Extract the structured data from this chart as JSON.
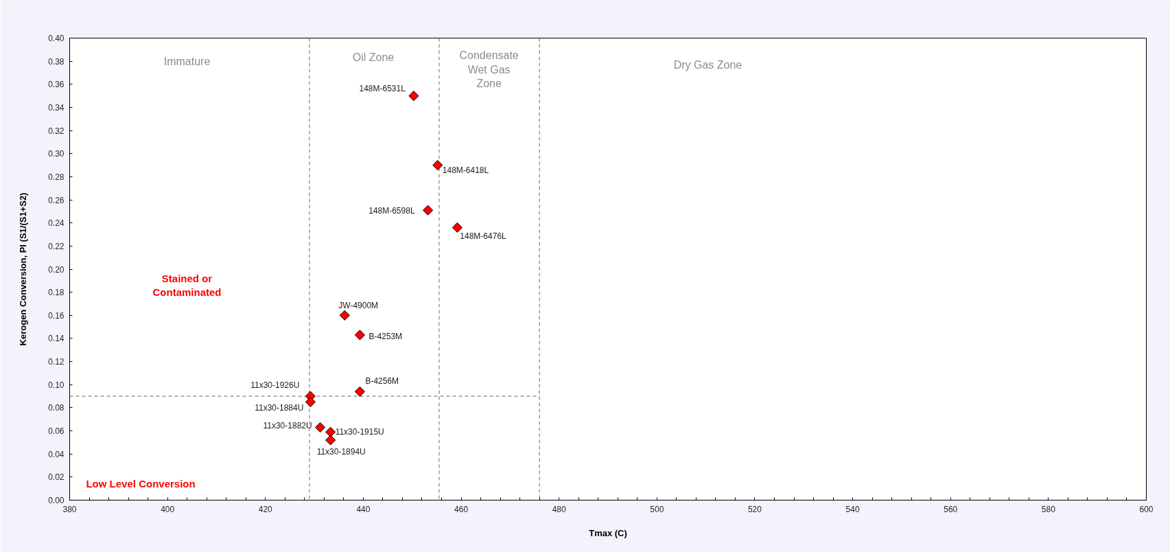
{
  "chart_data": {
    "type": "scatter",
    "xlabel": "Tmax (C)",
    "ylabel": "Kerogen Conversion, PI (S1/(S1+S2)",
    "xlim": [
      380,
      600
    ],
    "ylim": [
      0,
      0.4
    ],
    "xticks": [
      380,
      {
        "value": 384,
        "label": null
      },
      {
        "value": 388,
        "label": null
      },
      {
        "value": 392,
        "label": null
      },
      {
        "value": 396,
        "label": null
      },
      400,
      {
        "value": 404,
        "label": null
      },
      {
        "value": 408,
        "label": null
      },
      {
        "value": 412,
        "label": null
      },
      {
        "value": 416,
        "label": null
      },
      420,
      {
        "value": 424,
        "label": null
      },
      {
        "value": 428,
        "label": null
      },
      {
        "value": 432,
        "label": null
      },
      {
        "value": 436,
        "label": null
      },
      440,
      {
        "value": 444,
        "label": null
      },
      {
        "value": 448,
        "label": null
      },
      {
        "value": 452,
        "label": null
      },
      {
        "value": 456,
        "label": null
      },
      460,
      {
        "value": 464,
        "label": null
      },
      {
        "value": 468,
        "label": null
      },
      {
        "value": 472,
        "label": null
      },
      {
        "value": 476,
        "label": null
      },
      480,
      {
        "value": 484,
        "label": null
      },
      {
        "value": 488,
        "label": null
      },
      {
        "value": 492,
        "label": null
      },
      {
        "value": 496,
        "label": null
      },
      500,
      {
        "value": 504,
        "label": null
      },
      {
        "value": 508,
        "label": null
      },
      {
        "value": 512,
        "label": null
      },
      {
        "value": 516,
        "label": null
      },
      520,
      {
        "value": 524,
        "label": null
      },
      {
        "value": 528,
        "label": null
      },
      {
        "value": 532,
        "label": null
      },
      {
        "value": 536,
        "label": null
      },
      540,
      {
        "value": 544,
        "label": null
      },
      {
        "value": 548,
        "label": null
      },
      {
        "value": 552,
        "label": null
      },
      {
        "value": 556,
        "label": null
      },
      560,
      {
        "value": 564,
        "label": null
      },
      {
        "value": 568,
        "label": null
      },
      {
        "value": 572,
        "label": null
      },
      {
        "value": 576,
        "label": null
      },
      580,
      {
        "value": 584,
        "label": null
      },
      {
        "value": 588,
        "label": null
      },
      {
        "value": 592,
        "label": null
      },
      {
        "value": 596,
        "label": null
      },
      600
    ],
    "yticks": [
      {
        "value": 0,
        "label": "0.00"
      },
      {
        "value": 0.02,
        "label": "0.02"
      },
      {
        "value": 0.04,
        "label": "0.04"
      },
      {
        "value": 0.06,
        "label": "0.06"
      },
      {
        "value": 0.08,
        "label": "0.08"
      },
      {
        "value": 0.1,
        "label": "0.10"
      },
      {
        "value": 0.12,
        "label": "0.12"
      },
      {
        "value": 0.14,
        "label": "0.14"
      },
      {
        "value": 0.16,
        "label": "0.16"
      },
      {
        "value": 0.18,
        "label": "0.18"
      },
      {
        "value": 0.2,
        "label": "0.20"
      },
      {
        "value": 0.22,
        "label": "0.22"
      },
      {
        "value": 0.24,
        "label": "0.24"
      },
      {
        "value": 0.26,
        "label": "0.26"
      },
      {
        "value": 0.28,
        "label": "0.28"
      },
      {
        "value": 0.3,
        "label": "0.30"
      },
      {
        "value": 0.32,
        "label": "0.32"
      },
      {
        "value": 0.34,
        "label": "0.34"
      },
      {
        "value": 0.36,
        "label": "0.36"
      },
      {
        "value": 0.38,
        "label": "0.38"
      },
      {
        "value": 0.4,
        "label": "0.40"
      }
    ],
    "marker": "diamond",
    "series": [
      {
        "color": "#ff0000",
        "x": [
          450.3,
          455.2,
          453.2,
          459.2,
          436.2,
          439.3,
          439.3,
          429.2,
          429.2,
          431.2,
          433.3,
          433.3
        ],
        "values": [
          0.35,
          0.29,
          0.251,
          0.236,
          0.16,
          0.143,
          0.094,
          0.09,
          0.085,
          0.063,
          0.059,
          0.052
        ]
      },
      {
        "type": "line",
        "color": "#808080",
        "x": [
          380,
          476
        ],
        "values": [
          0.09,
          0.09
        ],
        "line_style": "dashed",
        "marker": "none"
      }
    ],
    "ref_lines": [
      {
        "axis": "x",
        "value": 429,
        "color": "#808080",
        "line_style": "dashed"
      },
      {
        "axis": "x",
        "value": 455.5,
        "color": "#808080",
        "line_style": "dashed"
      },
      {
        "axis": "x",
        "value": 476,
        "color": "#808080",
        "line_style": "dashed"
      }
    ],
    "annotations": [
      {
        "text": "148M-6531L",
        "x": 450.3,
        "y": 0.35
      },
      {
        "text": "148M-6418L",
        "x": 455.2,
        "y": 0.29
      },
      {
        "text": "148M-6598L",
        "x": 453.2,
        "y": 0.251
      },
      {
        "text": "148M-6476L",
        "x": 459.2,
        "y": 0.236
      },
      {
        "text": "JW-4900M",
        "x": 436.2,
        "y": 0.16
      },
      {
        "text": "B-4253M",
        "x": 439.3,
        "y": 0.143
      },
      {
        "text": "B-4256M",
        "x": 439.3,
        "y": 0.094
      },
      {
        "text": "11x30-1926U",
        "x": 429.2,
        "y": 0.09
      },
      {
        "text": "11x30-1884U",
        "x": 429.2,
        "y": 0.085
      },
      {
        "text": "11x30-1882U",
        "x": 431.2,
        "y": 0.063
      },
      {
        "text": "11x30-1915U",
        "x": 433.3,
        "y": 0.059
      },
      {
        "text": "11x30-1894U",
        "x": 433.3,
        "y": 0.052
      },
      "Immature",
      "Oil Zone",
      "Condensate\nWet Gas\nZone",
      "Dry Gas Zone",
      "Stained or\nContaminated",
      "Low Level Conversion"
    ]
  }
}
